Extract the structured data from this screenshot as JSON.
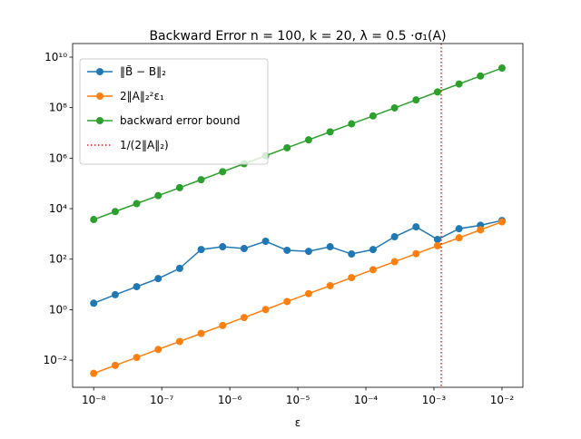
{
  "chart_data": {
    "type": "line",
    "title": "Backward Error n = 100, k = 20, λ = 0.5 ·σ₁(A)",
    "x_label": "ε",
    "log_x": true,
    "log_y": true,
    "legend": "upper left",
    "x": [
      1e-08,
      2.07e-08,
      4.28e-08,
      8.86e-08,
      1.833e-07,
      3.79e-07,
      7.85e-07,
      1.624e-06,
      3.36e-06,
      6.95e-06,
      1.438e-05,
      2.98e-05,
      6.16e-05,
      0.0001274,
      0.000264,
      0.000546,
      0.001129,
      0.00234,
      0.00483,
      0.01
    ],
    "series": [
      {
        "name": "‖B̃ − B‖₂",
        "color": "#1f77b4",
        "values": [
          1.8,
          3.9,
          8.1,
          17,
          43,
          240,
          310,
          263,
          510,
          224,
          204,
          310,
          160,
          240,
          770,
          1900,
          600,
          1600,
          2200,
          3400
        ]
      },
      {
        "name": "2‖A‖₂²ε₁",
        "color": "#ff7f0e",
        "values": [
          0.003,
          0.0062,
          0.0128,
          0.0266,
          0.055,
          0.114,
          0.236,
          0.487,
          1.01,
          2.09,
          4.31,
          8.9,
          18.5,
          38.2,
          79,
          164,
          339,
          702,
          1450,
          3000
        ]
      },
      {
        "name": "backward error  bound",
        "color": "#2ca02c",
        "values": [
          3700,
          7660,
          15800,
          32800,
          67800,
          140000,
          290000,
          601000,
          1240000,
          2570000,
          5320000,
          11000000,
          22800000,
          47100000,
          97700000,
          202000000,
          418000000,
          866000000,
          1790000000,
          3700000000
        ]
      }
    ],
    "reference_lines": [
      {
        "name": "1/(2‖A‖₂)",
        "x": 0.00128,
        "color": "#d62728",
        "style": "dotted"
      }
    ],
    "xlim": [
      4.9e-09,
      0.0203
    ],
    "ylim": [
      0.00084,
      34600000000
    ],
    "xticks": [
      {
        "value": 1e-08,
        "label": "10⁻⁸"
      },
      {
        "value": 1e-07,
        "label": "10⁻⁷"
      },
      {
        "value": 1e-06,
        "label": "10⁻⁶"
      },
      {
        "value": 1e-05,
        "label": "10⁻⁵"
      },
      {
        "value": 0.0001,
        "label": "10⁻⁴"
      },
      {
        "value": 0.001,
        "label": "10⁻³"
      },
      {
        "value": 0.01,
        "label": "10⁻²"
      }
    ],
    "yticks": [
      {
        "value": 0.01,
        "label": "10⁻²"
      },
      {
        "value": 1,
        "label": "10⁰"
      },
      {
        "value": 100,
        "label": "10²"
      },
      {
        "value": 10000,
        "label": "10⁴"
      },
      {
        "value": 1000000,
        "label": "10⁶"
      },
      {
        "value": 100000000,
        "label": "10⁸"
      },
      {
        "value": 10000000000,
        "label": "10¹⁰"
      }
    ]
  }
}
